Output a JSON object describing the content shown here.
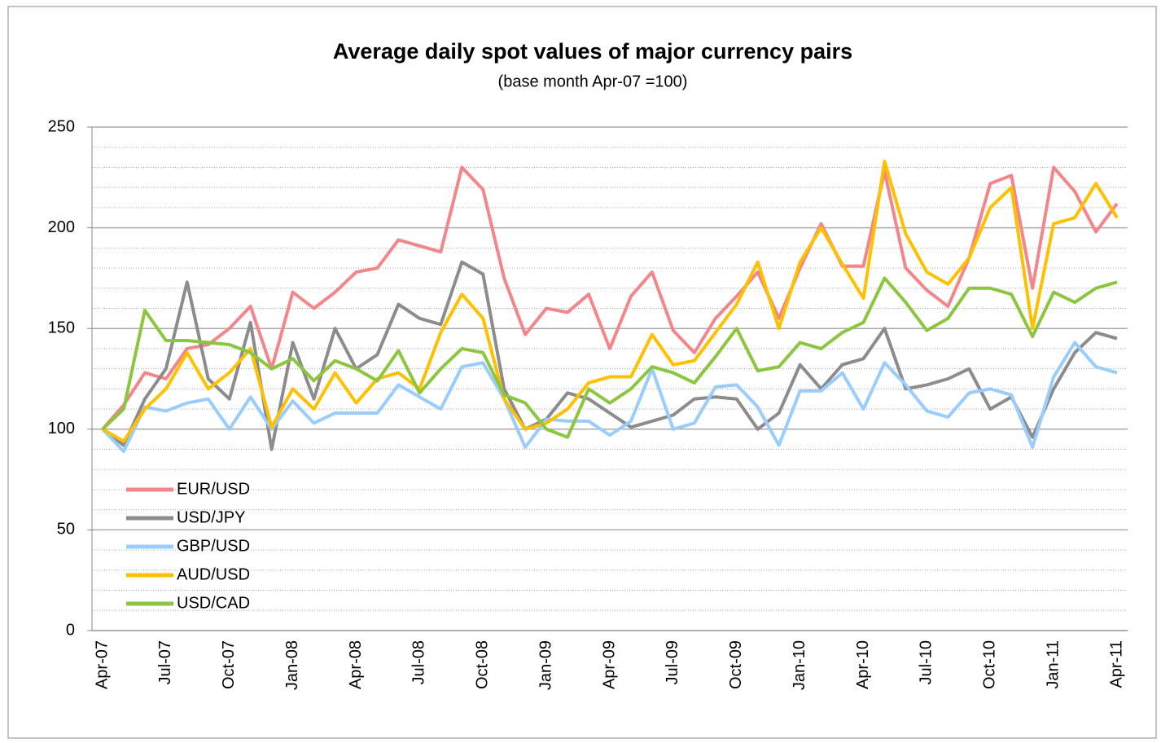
{
  "chart_data": {
    "type": "line",
    "title": "Average daily spot values of major currency pairs",
    "subtitle": "(base month Apr-07 =100)",
    "categories": [
      "Apr-07",
      null,
      null,
      "Jul-07",
      null,
      null,
      "Oct-07",
      null,
      null,
      "Jan-08",
      null,
      null,
      "Apr-08",
      null,
      null,
      "Jul-08",
      null,
      null,
      "Oct-08",
      null,
      null,
      "Jan-09",
      null,
      null,
      "Apr-09",
      null,
      null,
      "Jul-09",
      null,
      null,
      "Oct-09",
      null,
      null,
      "Jan-10",
      null,
      null,
      "Apr-10",
      null,
      null,
      "Jul-10",
      null,
      null,
      "Oct-10",
      null,
      null,
      "Jan-11",
      null,
      null,
      "Apr-11"
    ],
    "series": [
      {
        "name": "EUR/USD",
        "color": "#f4858a",
        "values": [
          100,
          112,
          128,
          125,
          140,
          142,
          150,
          161,
          130,
          168,
          160,
          168,
          178,
          180,
          194,
          191,
          188,
          230,
          219,
          175,
          147,
          160,
          158,
          167,
          140,
          166,
          178,
          149,
          138,
          155,
          166,
          178,
          155,
          180,
          202,
          181,
          181,
          228,
          180,
          169,
          161,
          185,
          222,
          226,
          170,
          230,
          218,
          198,
          212
        ]
      },
      {
        "name": "USD/JPY",
        "color": "#8c8c8c",
        "values": [
          100,
          92,
          115,
          130,
          173,
          125,
          115,
          153,
          90,
          143,
          115,
          150,
          130,
          137,
          162,
          155,
          152,
          183,
          177,
          120,
          100,
          105,
          118,
          115,
          108,
          101,
          104,
          107,
          115,
          116,
          115,
          100,
          108,
          132,
          120,
          132,
          135,
          150,
          120,
          122,
          125,
          130,
          110,
          116,
          96,
          120,
          138,
          148,
          145
        ]
      },
      {
        "name": "GBP/USD",
        "color": "#99ccff",
        "values": [
          100,
          89,
          111,
          109,
          113,
          115,
          100,
          116,
          100,
          114,
          103,
          108,
          108,
          108,
          122,
          116,
          110,
          131,
          133,
          115,
          91,
          105,
          104,
          104,
          97,
          104,
          130,
          100,
          103,
          121,
          122,
          111,
          92,
          119,
          119,
          128,
          110,
          133,
          122,
          109,
          106,
          118,
          120,
          117,
          91,
          126,
          143,
          131,
          128
        ]
      },
      {
        "name": "AUD/USD",
        "color": "#ffc000",
        "values": [
          100,
          94,
          110,
          120,
          138,
          120,
          128,
          140,
          101,
          120,
          110,
          128,
          113,
          125,
          128,
          120,
          148,
          167,
          155,
          115,
          100,
          103,
          110,
          123,
          126,
          126,
          147,
          132,
          134,
          148,
          162,
          183,
          150,
          183,
          200,
          182,
          165,
          233,
          197,
          178,
          172,
          185,
          210,
          220,
          150,
          202,
          205,
          222,
          205
        ]
      },
      {
        "name": "USD/CAD",
        "color": "#8cc63f",
        "values": [
          100,
          110,
          159,
          144,
          144,
          143,
          142,
          138,
          130,
          135,
          124,
          134,
          130,
          124,
          139,
          118,
          130,
          140,
          138,
          117,
          113,
          100,
          96,
          120,
          113,
          120,
          131,
          128,
          123,
          136,
          150,
          129,
          131,
          143,
          140,
          148,
          153,
          175,
          163,
          149,
          155,
          170,
          170,
          167,
          146,
          168,
          163,
          170,
          173
        ]
      }
    ],
    "ylim": [
      0,
      250
    ],
    "yticks": [
      0,
      50,
      100,
      150,
      200,
      250
    ],
    "minor_yticks": [
      10,
      20,
      30,
      40,
      60,
      70,
      80,
      90,
      110,
      120,
      130,
      140,
      160,
      170,
      180,
      190,
      210,
      220,
      230,
      240
    ],
    "grid": true,
    "legend": "lower left"
  }
}
